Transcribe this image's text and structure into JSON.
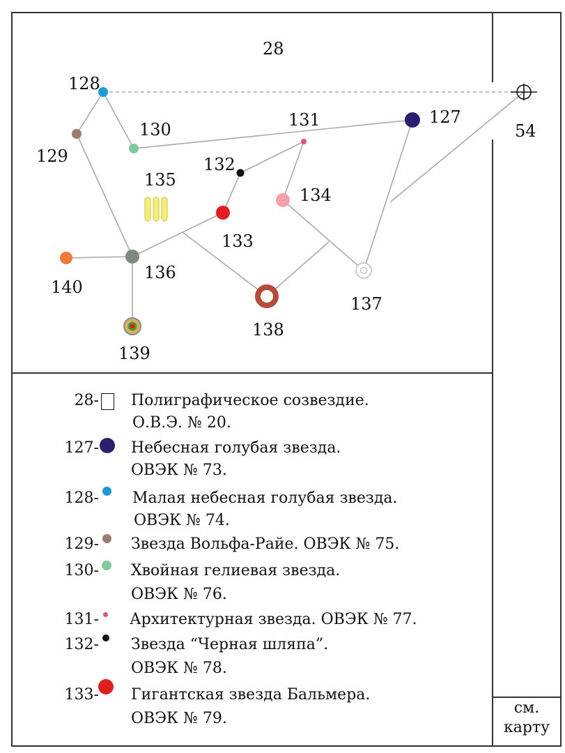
{
  "map": {
    "sector_label": "28",
    "nodes": [
      {
        "id": "127",
        "label": "127",
        "color": "#2a1f6e",
        "kind": "filled"
      },
      {
        "id": "128",
        "label": "128",
        "color": "#1f9ad6",
        "kind": "filled"
      },
      {
        "id": "129",
        "label": "129",
        "color": "#9a7d72",
        "kind": "filled"
      },
      {
        "id": "130",
        "label": "130",
        "color": "#7fc9a0",
        "kind": "filled"
      },
      {
        "id": "131",
        "label": "131",
        "color": "#d9557a",
        "kind": "filled"
      },
      {
        "id": "132",
        "label": "132",
        "color": "#111111",
        "kind": "filled"
      },
      {
        "id": "133",
        "label": "133",
        "color": "#e02020",
        "kind": "filled"
      },
      {
        "id": "134",
        "label": "134",
        "color": "#f3a3a8",
        "kind": "filled"
      },
      {
        "id": "135",
        "label": "135",
        "color": "#f5ef7a",
        "kind": "triple-bar"
      },
      {
        "id": "136",
        "label": "136",
        "color": "#7d8a7f",
        "kind": "filled"
      },
      {
        "id": "137",
        "label": "137",
        "color": "#bdbdbd",
        "kind": "ring"
      },
      {
        "id": "138",
        "label": "138",
        "color": "#b44b3b",
        "kind": "thick-ring"
      },
      {
        "id": "139",
        "label": "139",
        "color": "#d1b45a",
        "kind": "bullseye"
      },
      {
        "id": "140",
        "label": "140",
        "color": "#f07a3a",
        "kind": "filled"
      },
      {
        "id": "54",
        "label": "54",
        "color": "#111111",
        "kind": "crosshair"
      }
    ]
  },
  "legend": {
    "items": [
      {
        "num": "28-",
        "symbol": "square",
        "color": "#111111",
        "line1": "Полиграфическое созвездие.",
        "line2": "О.В.Э. № 20."
      },
      {
        "num": "127-",
        "symbol": "dot-large",
        "color": "#2a1f6e",
        "line1": "Небесная голубая звезда.",
        "line2": "ОВЭК  № 73."
      },
      {
        "num": "128-",
        "symbol": "dot-small",
        "color": "#1f9ad6",
        "line1": "Малая небесная голубая звезда.",
        "line2": "ОВЭК  № 74."
      },
      {
        "num": "129-",
        "symbol": "dot-small",
        "color": "#9a7d72",
        "line1": "Звезда Вольфа-Райе. ОВЭК  № 75.",
        "line2": ""
      },
      {
        "num": "130-",
        "symbol": "dot-small",
        "color": "#7fc9a0",
        "line1": "Хвойная гелиевая звезда.",
        "line2": "ОВЭК  № 76."
      },
      {
        "num": "131-",
        "symbol": "dot-tiny",
        "color": "#d9557a",
        "line1": "Архитектурная звезда. ОВЭК  № 77.",
        "line2": ""
      },
      {
        "num": "132-",
        "symbol": "dot-tiny",
        "color": "#111111",
        "line1": "Звезда “Черная шляпа”.",
        "line2": "ОВЭК  № 78."
      },
      {
        "num": "133-",
        "symbol": "dot-large",
        "color": "#e02020",
        "line1": "Гигантская звезда Бальмера.",
        "line2": "ОВЭК  № 79."
      }
    ]
  },
  "side_note": {
    "line1": "см.",
    "line2": "карту"
  }
}
